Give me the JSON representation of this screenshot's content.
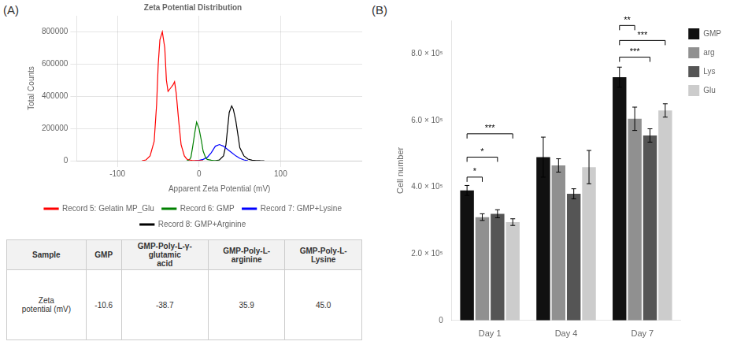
{
  "chart_data": [
    {
      "type": "line",
      "label": "(A)",
      "title": "Zeta Potential Distribution",
      "xlabel": "Apparent Zeta Potential (mV)",
      "ylabel": "Total Counts",
      "xlim": [
        -150,
        200
      ],
      "ylim": [
        0,
        900000
      ],
      "xticks": [
        -100,
        0,
        100
      ],
      "yticks": [
        0,
        200000,
        400000,
        600000,
        800000
      ],
      "grid": true,
      "legend": "bottom",
      "series": [
        {
          "name": "Record 5: Gelatin MP_Glu",
          "color": "red",
          "x": [
            -70,
            -65,
            -60,
            -55,
            -52,
            -50,
            -48,
            -45,
            -42,
            -40,
            -38,
            -35,
            -32,
            -30,
            -28,
            -25,
            -22,
            -18,
            -15,
            -12,
            -8,
            -5,
            0,
            5
          ],
          "values": [
            0,
            5000,
            30000,
            120000,
            350000,
            600000,
            750000,
            800000,
            700000,
            500000,
            430000,
            450000,
            470000,
            490000,
            420000,
            250000,
            100000,
            30000,
            10000,
            5000,
            1000,
            500,
            200,
            0
          ]
        },
        {
          "name": "Record 6: GMP",
          "color": "green",
          "x": [
            -15,
            -12,
            -10,
            -8,
            -5,
            -3,
            0,
            3,
            5,
            8,
            10,
            15,
            18,
            20,
            25
          ],
          "values": [
            0,
            5000,
            20000,
            80000,
            180000,
            240000,
            200000,
            120000,
            60000,
            20000,
            8000,
            3000,
            1000,
            500,
            0
          ]
        },
        {
          "name": "Record 7: GMP+Lysine",
          "color": "blue",
          "x": [
            -5,
            0,
            5,
            10,
            15,
            20,
            25,
            30,
            35,
            40,
            45,
            50,
            55,
            60
          ],
          "values": [
            0,
            2000,
            8000,
            20000,
            50000,
            90000,
            100000,
            90000,
            70000,
            50000,
            30000,
            15000,
            5000,
            0
          ]
        },
        {
          "name": "Record 8: GMP+Arginine",
          "color": "black",
          "x": [
            20,
            25,
            30,
            33,
            35,
            37,
            40,
            42,
            45,
            48,
            50,
            55,
            60,
            65,
            70,
            75,
            80
          ],
          "values": [
            0,
            5000,
            30000,
            100000,
            200000,
            300000,
            340000,
            320000,
            250000,
            150000,
            80000,
            30000,
            10000,
            3000,
            1000,
            200,
            0
          ]
        }
      ]
    },
    {
      "type": "table",
      "columns": [
        "Sample",
        "GMP",
        "GMP-Poly-L-γ-\nglutamic\nacid",
        "GMP-Poly-L-\narginine",
        "GMP-Poly-L-\nLysine"
      ],
      "rows": [
        [
          "Zeta\npotential (mV)",
          "-10.6",
          "-38.7",
          "35.9",
          "45.0"
        ]
      ]
    },
    {
      "type": "bar",
      "label": "(B)",
      "ylabel": "Cell number",
      "categories": [
        "Day 1",
        "Day 4",
        "Day 7"
      ],
      "ylim": [
        0,
        900000
      ],
      "yticks": [
        0,
        {
          "value": 200000,
          "label": "2.0 × 10⁵"
        },
        {
          "value": 400000,
          "label": "4.0 × 10⁵"
        },
        {
          "value": 600000,
          "label": "6.0 × 10⁵"
        },
        {
          "value": 800000,
          "label": "8.0 × 10⁵"
        }
      ],
      "grid": false,
      "legend": "right",
      "series": [
        {
          "name": "GMP",
          "color": "#111111",
          "values": [
            390000,
            490000,
            730000
          ],
          "errors": [
            15000,
            60000,
            30000
          ]
        },
        {
          "name": "arg",
          "color": "#909090",
          "values": [
            310000,
            465000,
            605000
          ],
          "errors": [
            10000,
            20000,
            35000
          ]
        },
        {
          "name": "Lys",
          "color": "#555555",
          "values": [
            320000,
            380000,
            555000
          ],
          "errors": [
            12000,
            15000,
            20000
          ]
        },
        {
          "name": "Glu",
          "color": "#cccccc",
          "values": [
            295000,
            460000,
            630000
          ],
          "errors": [
            10000,
            50000,
            20000
          ]
        }
      ],
      "annotations": [
        {
          "text": "*",
          "category": "Day 1",
          "from": "GMP",
          "to": "arg",
          "y": 430000
        },
        {
          "text": "*",
          "category": "Day 1",
          "from": "GMP",
          "to": "Lys",
          "y": 490000
        },
        {
          "text": "***",
          "category": "Day 1",
          "from": "GMP",
          "to": "Glu",
          "y": 560000
        },
        {
          "text": "***",
          "category": "Day 7",
          "from": "GMP",
          "to": "Lys",
          "y": 790000
        },
        {
          "text": "***",
          "category": "Day 7",
          "from": "GMP",
          "to": "Glu",
          "y": 840000
        },
        {
          "text": "**",
          "category": "Day 7",
          "from": "GMP",
          "to": "arg",
          "y": 885000
        }
      ]
    }
  ]
}
